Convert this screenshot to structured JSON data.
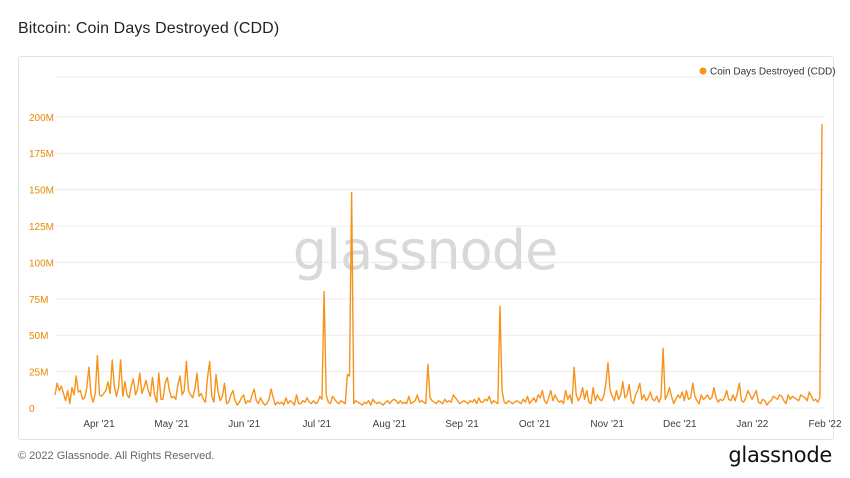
{
  "page": {
    "title": "Bitcoin: Coin Days Destroyed (CDD)",
    "copyright": "© 2022 Glassnode. All Rights Reserved.",
    "brand": "glassnode",
    "watermark": "glassnode"
  },
  "chart_data": {
    "type": "line",
    "title": "Bitcoin: Coin Days Destroyed (CDD)",
    "series": [
      {
        "name": "Coin Days Destroyed (CDD)",
        "color": "#f7931a",
        "values": [
          9,
          17,
          12,
          15,
          10,
          5,
          12,
          3,
          14,
          9,
          22,
          11,
          12,
          6,
          7,
          14,
          28,
          9,
          4,
          10,
          36,
          9,
          8,
          10,
          12,
          18,
          10,
          33,
          15,
          8,
          14,
          33,
          8,
          18,
          9,
          7,
          15,
          20,
          9,
          13,
          24,
          10,
          14,
          19,
          12,
          8,
          21,
          9,
          4,
          24,
          6,
          6,
          17,
          21,
          12,
          7,
          8,
          6,
          16,
          22,
          9,
          12,
          32,
          12,
          9,
          7,
          13,
          24,
          8,
          10,
          6,
          4,
          21,
          32,
          8,
          4,
          23,
          11,
          5,
          8,
          17,
          3,
          4,
          9,
          12,
          5,
          2,
          4,
          7,
          9,
          3,
          5,
          4,
          9,
          13,
          5,
          3,
          7,
          4,
          2,
          3,
          6,
          13,
          7,
          2,
          4,
          3,
          4,
          2,
          7,
          3,
          5,
          4,
          2,
          9,
          3,
          3,
          5,
          4,
          7,
          4,
          3,
          5,
          3,
          4,
          8,
          6,
          80,
          9,
          4,
          3,
          8,
          6,
          4,
          3,
          5,
          4,
          3,
          23,
          22,
          148,
          3,
          5,
          4,
          3,
          2,
          4,
          3,
          5,
          2,
          6,
          4,
          3,
          4,
          3,
          2,
          4,
          5,
          3,
          5,
          6,
          5,
          3,
          5,
          3,
          4,
          3,
          8,
          3,
          4,
          5,
          9,
          4,
          5,
          4,
          3,
          30,
          7,
          5,
          4,
          3,
          5,
          4,
          3,
          6,
          4,
          5,
          4,
          9,
          7,
          5,
          3,
          4,
          5,
          4,
          3,
          5,
          4,
          6,
          3,
          7,
          4,
          4,
          6,
          5,
          8,
          3,
          5,
          4,
          3,
          70,
          12,
          4,
          3,
          5,
          4,
          3,
          4,
          5,
          4,
          3,
          6,
          4,
          8,
          3,
          5,
          7,
          4,
          9,
          7,
          12,
          5,
          3,
          7,
          12,
          5,
          9,
          6,
          4,
          5,
          3,
          12,
          6,
          9,
          3,
          28,
          9,
          5,
          8,
          14,
          6,
          12,
          4,
          3,
          14,
          5,
          9,
          6,
          5,
          8,
          17,
          31,
          12,
          8,
          5,
          12,
          6,
          9,
          18,
          7,
          9,
          16,
          5,
          3,
          9,
          12,
          17,
          6,
          9,
          5,
          7,
          11,
          6,
          5,
          8,
          4,
          7,
          41,
          6,
          9,
          14,
          8,
          3,
          6,
          9,
          7,
          11,
          5,
          12,
          6,
          7,
          17,
          8,
          5,
          3,
          9,
          6,
          7,
          9,
          6,
          7,
          14,
          7,
          4,
          6,
          5,
          7,
          12,
          6,
          5,
          9,
          5,
          10,
          17,
          5,
          4,
          7,
          12,
          9,
          6,
          9,
          12,
          4,
          3,
          6,
          5,
          2,
          4,
          5,
          8,
          7,
          6,
          9,
          8,
          5,
          3,
          9,
          6,
          8,
          7,
          6,
          5,
          9,
          8,
          7,
          5,
          11,
          8,
          5,
          6,
          4,
          7,
          195
        ]
      }
    ],
    "x_labels": [
      "Apr '21",
      "May '21",
      "Jun '21",
      "Jul '21",
      "Aug '21",
      "Sep '21",
      "Oct '21",
      "Nov '21",
      "Dec '21",
      "Jan '22",
      "Feb '22"
    ],
    "y_ticks": [
      0,
      25,
      50,
      75,
      100,
      125,
      150,
      175,
      200
    ],
    "y_tick_labels": [
      "0",
      "25M",
      "50M",
      "75M",
      "100M",
      "125M",
      "150M",
      "175M",
      "200M"
    ],
    "ylim": [
      0,
      215
    ],
    "y_unit": "millions",
    "grid": true,
    "legend_position": "top-right"
  }
}
